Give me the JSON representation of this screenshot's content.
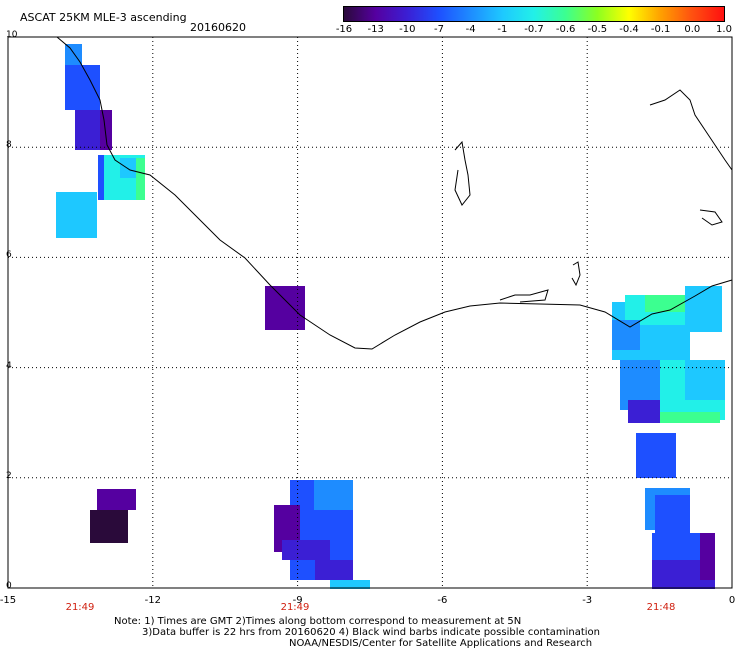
{
  "header": {
    "title": "ASCAT 25KM MLE-3 ascending",
    "date": "20160620"
  },
  "colorbar": {
    "ticks": [
      "-16",
      "-13",
      "-10",
      "-7",
      "-4",
      "-1",
      "-0.7",
      "-0.6",
      "-0.5",
      "-0.4",
      "-0.1",
      "0.0",
      "1.0"
    ],
    "colors": [
      "#2a0a3a",
      "#5500a0",
      "#3b1fd4",
      "#1e50ff",
      "#1e8cff",
      "#1ec8ff",
      "#22f0e8",
      "#3cff90",
      "#8cff20",
      "#ffff00",
      "#ffa000",
      "#ff5010",
      "#ff1010"
    ]
  },
  "axes": {
    "y_labels": [
      "0",
      "2",
      "4",
      "6",
      "8",
      "10"
    ],
    "x_labels": [
      "-15",
      "-12",
      "-9",
      "-6",
      "-3",
      "0"
    ]
  },
  "pass_times": {
    "t1": "21:49",
    "t2": "21:49",
    "t3": "21:48"
  },
  "notes": {
    "line1": "Note: 1) Times are GMT 2)Times along bottom correspond to measurement at 5N",
    "line2": "3)Data buffer is 22 hrs from 20160620 4) Black wind barbs indicate possible contamination",
    "line3": "NOAA/NESDIS/Center for Satellite Applications and Research"
  }
}
